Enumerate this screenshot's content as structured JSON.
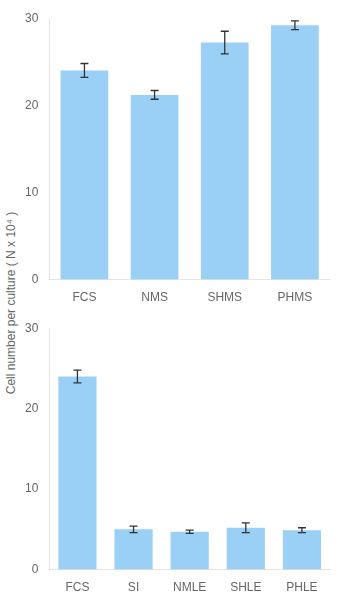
{
  "chart_data": [
    {
      "type": "bar",
      "ylabel": "Cell number per culture ( N x 10⁴ )",
      "categories": [
        "FCS",
        "NMS",
        "SHMS",
        "PHMS"
      ],
      "values": [
        24.0,
        21.2,
        27.2,
        29.2
      ],
      "errors": [
        0.8,
        0.5,
        1.3,
        0.5
      ],
      "ylim": [
        0,
        30
      ],
      "yticks": [
        0,
        10,
        20,
        30
      ],
      "grid": false
    },
    {
      "type": "bar",
      "categories": [
        "FCS",
        "SI",
        "NMLE",
        "SHLE",
        "PHLE"
      ],
      "values": [
        24.0,
        5.0,
        4.7,
        5.2,
        4.9
      ],
      "errors": [
        0.8,
        0.4,
        0.2,
        0.6,
        0.3
      ],
      "ylim": [
        0,
        30
      ],
      "yticks": [
        0,
        10,
        20,
        30
      ],
      "grid": false
    }
  ]
}
